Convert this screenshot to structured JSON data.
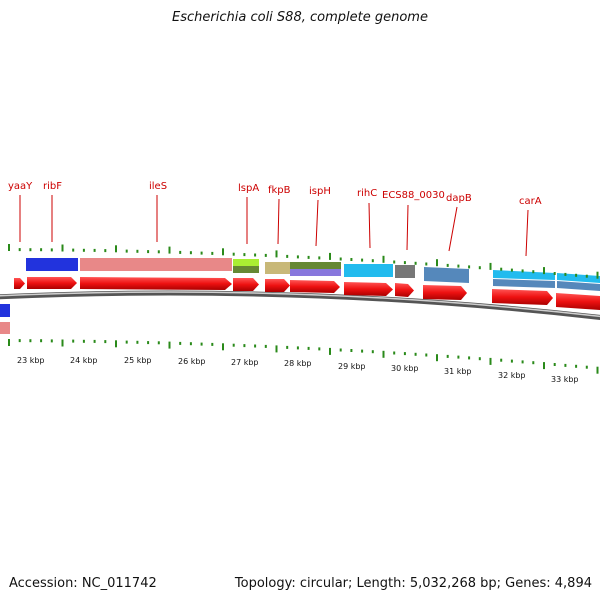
{
  "title": "Escherichia coli S88, complete genome",
  "footer": {
    "accession": "Accession: NC_011742",
    "summary": "Topology: circular; Length: 5,032,268 bp; Genes: 4,894"
  },
  "colors": {
    "cds_arrow": "#ee1111",
    "label": "#cc0000",
    "tick": "#2a8a1a",
    "backbone": "#7a7a7a"
  },
  "ruler": {
    "unit": "kbp",
    "ticks": [
      23,
      24,
      25,
      26,
      27,
      28,
      29,
      30,
      31,
      32,
      33
    ],
    "tick_labels": [
      "23 kbp",
      "24 kbp",
      "25 kbp",
      "26 kbp",
      "27 kbp",
      "28 kbp",
      "29 kbp",
      "30 kbp",
      "31 kbp",
      "32 kbp",
      "33 kbp"
    ]
  },
  "gene_labels": [
    "yaaY",
    "ribF",
    "ileS",
    "lspA",
    "fkpB",
    "ispH",
    "rihC",
    "ECS88_0030",
    "dapB",
    "carA"
  ],
  "features": [
    {
      "color": "#2233dd"
    },
    {
      "color": "#e88888"
    },
    {
      "color": "#aaee33"
    },
    {
      "color": "#c8b878"
    },
    {
      "color": "#668833"
    },
    {
      "color": "#8877dd"
    },
    {
      "color": "#22bbee"
    },
    {
      "color": "#777777"
    },
    {
      "color": "#5588bb"
    },
    {
      "color": "#22bbee"
    },
    {
      "color": "#5588bb"
    }
  ]
}
